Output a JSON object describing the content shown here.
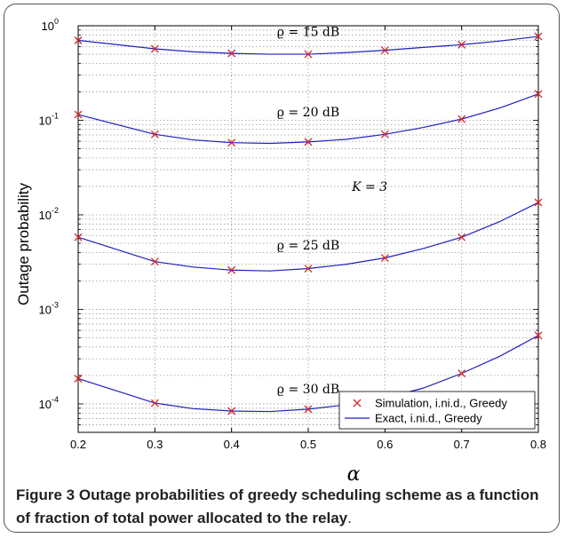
{
  "chart_data": {
    "type": "line",
    "xlabel": "α",
    "ylabel": "Outage probability",
    "xlim": [
      0.2,
      0.8
    ],
    "ylim": [
      5e-05,
      1
    ],
    "yscale": "log",
    "grid": true,
    "legend_position": "bottom-right",
    "x_ticks": [
      "0.2",
      "0.3",
      "0.4",
      "0.5",
      "0.6",
      "0.7",
      "0.8"
    ],
    "y_ticks": [
      {
        "value": 1,
        "base": "10",
        "exp": "0"
      },
      {
        "value": 0.1,
        "base": "10",
        "exp": "-1"
      },
      {
        "value": 0.01,
        "base": "10",
        "exp": "-2"
      },
      {
        "value": 0.001,
        "base": "10",
        "exp": "-3"
      },
      {
        "value": 0.0001,
        "base": "10",
        "exp": "-4"
      }
    ],
    "legend": [
      {
        "label": "Simulation, i.ni.d., Greedy",
        "marker": "x",
        "color": "#d62728"
      },
      {
        "label": "Exact, i.ni.d., Greedy",
        "marker": "line",
        "color": "#1f1fbf"
      }
    ],
    "annotations": [
      {
        "text": "ϱ = 15 dB",
        "x": 0.5,
        "y": 0.78
      },
      {
        "text": "ϱ = 20 dB",
        "x": 0.5,
        "y": 0.11
      },
      {
        "text": "K = 3",
        "x": 0.58,
        "y": 0.018
      },
      {
        "text": "ϱ = 25 dB",
        "x": 0.5,
        "y": 0.0043
      },
      {
        "text": "ϱ = 30 dB",
        "x": 0.5,
        "y": 0.00013
      }
    ],
    "series": [
      {
        "rho_db": 15,
        "x": [
          0.2,
          0.3,
          0.4,
          0.5,
          0.6,
          0.7,
          0.8
        ],
        "sim": [
          0.7,
          0.57,
          0.51,
          0.5,
          0.55,
          0.63,
          0.77
        ],
        "exact": {
          "x": [
            0.2,
            0.3,
            0.35,
            0.4,
            0.45,
            0.5,
            0.55,
            0.6,
            0.65,
            0.7,
            0.75,
            0.8
          ],
          "y": [
            0.7,
            0.57,
            0.53,
            0.51,
            0.5,
            0.5,
            0.52,
            0.55,
            0.59,
            0.63,
            0.69,
            0.77
          ]
        }
      },
      {
        "rho_db": 20,
        "x": [
          0.2,
          0.3,
          0.4,
          0.5,
          0.6,
          0.7,
          0.8
        ],
        "sim": [
          0.115,
          0.071,
          0.058,
          0.059,
          0.071,
          0.103,
          0.19
        ],
        "exact": {
          "x": [
            0.2,
            0.3,
            0.35,
            0.4,
            0.45,
            0.5,
            0.55,
            0.6,
            0.65,
            0.7,
            0.75,
            0.8
          ],
          "y": [
            0.115,
            0.071,
            0.062,
            0.058,
            0.057,
            0.059,
            0.063,
            0.071,
            0.084,
            0.103,
            0.135,
            0.19
          ]
        }
      },
      {
        "rho_db": 25,
        "x": [
          0.2,
          0.3,
          0.4,
          0.5,
          0.6,
          0.7,
          0.8
        ],
        "sim": [
          0.0058,
          0.0032,
          0.0026,
          0.0027,
          0.0035,
          0.0058,
          0.0135
        ],
        "exact": {
          "x": [
            0.2,
            0.3,
            0.35,
            0.4,
            0.45,
            0.5,
            0.55,
            0.6,
            0.65,
            0.7,
            0.75,
            0.8
          ],
          "y": [
            0.0058,
            0.0032,
            0.0028,
            0.0026,
            0.00255,
            0.0027,
            0.003,
            0.0035,
            0.0044,
            0.0058,
            0.0085,
            0.0135
          ]
        }
      },
      {
        "rho_db": 30,
        "x": [
          0.2,
          0.3,
          0.4,
          0.5,
          0.6,
          0.7,
          0.8
        ],
        "sim": [
          0.000185,
          0.000102,
          8.4e-05,
          8.8e-05,
          0.000115,
          0.00021,
          0.00053
        ],
        "exact": {
          "x": [
            0.2,
            0.3,
            0.35,
            0.4,
            0.45,
            0.5,
            0.55,
            0.6,
            0.65,
            0.7,
            0.75,
            0.8
          ],
          "y": [
            0.000185,
            0.000102,
            8.9e-05,
            8.4e-05,
            8.3e-05,
            8.8e-05,
            9.8e-05,
            0.000115,
            0.000147,
            0.00021,
            0.00032,
            0.00053
          ]
        }
      }
    ]
  },
  "caption": {
    "label": "Figure 3",
    "text": " Outage probabilities of greedy scheduling scheme as a function of fraction of total power allocated to the relay",
    "end": "."
  }
}
